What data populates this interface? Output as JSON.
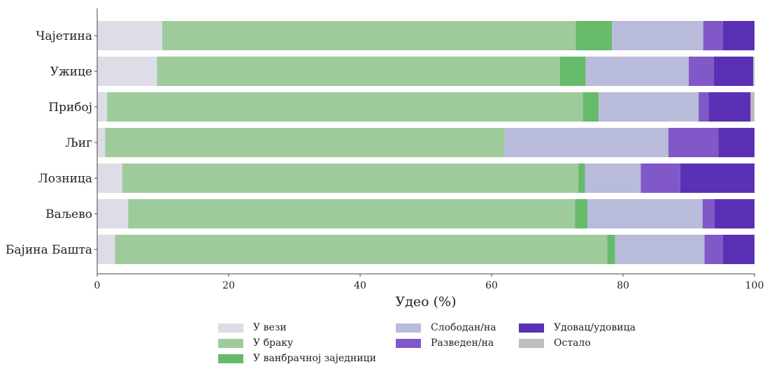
{
  "chart_data": {
    "type": "bar",
    "orientation": "horizontal",
    "stacked": true,
    "title": "",
    "xlabel": "Удео (%)",
    "ylabel": "",
    "xlim": [
      0,
      100
    ],
    "xticks": [
      "0",
      "20",
      "40",
      "60",
      "80",
      "100"
    ],
    "grid": false,
    "legend_position": "bottom",
    "categories": [
      "Чајетина",
      "Ужице",
      "Прибој",
      "Љиг",
      "Лозница",
      "Ваљево",
      "Бајина Башта"
    ],
    "series": [
      {
        "name": "У вези",
        "color": "#dddde8",
        "values": [
          9.9,
          9.1,
          1.5,
          1.2,
          3.8,
          4.7,
          2.7
        ]
      },
      {
        "name": "У браку",
        "color": "#9fcb9c",
        "values": [
          62.9,
          61.3,
          72.4,
          60.8,
          69.4,
          68.0,
          74.9
        ]
      },
      {
        "name": "У ванбрачној заједници",
        "color": "#66bb6a",
        "values": [
          5.5,
          3.9,
          2.4,
          0.0,
          1.0,
          1.9,
          1.2
        ]
      },
      {
        "name": "Слободан/на",
        "color": "#b9bbdb",
        "values": [
          13.9,
          15.7,
          15.2,
          24.9,
          8.5,
          17.5,
          13.6
        ]
      },
      {
        "name": "Разведен/на",
        "color": "#8058c8",
        "values": [
          3.0,
          3.8,
          1.5,
          7.6,
          6.0,
          1.8,
          2.8
        ]
      },
      {
        "name": "Удовац/удовица",
        "color": "#5a30b5",
        "values": [
          4.8,
          6.0,
          6.4,
          5.5,
          11.3,
          6.1,
          4.8
        ]
      },
      {
        "name": "Остало",
        "color": "#bdbdbd",
        "values": [
          0.0,
          0.2,
          0.6,
          0.0,
          0.0,
          0.0,
          0.0
        ]
      }
    ]
  }
}
